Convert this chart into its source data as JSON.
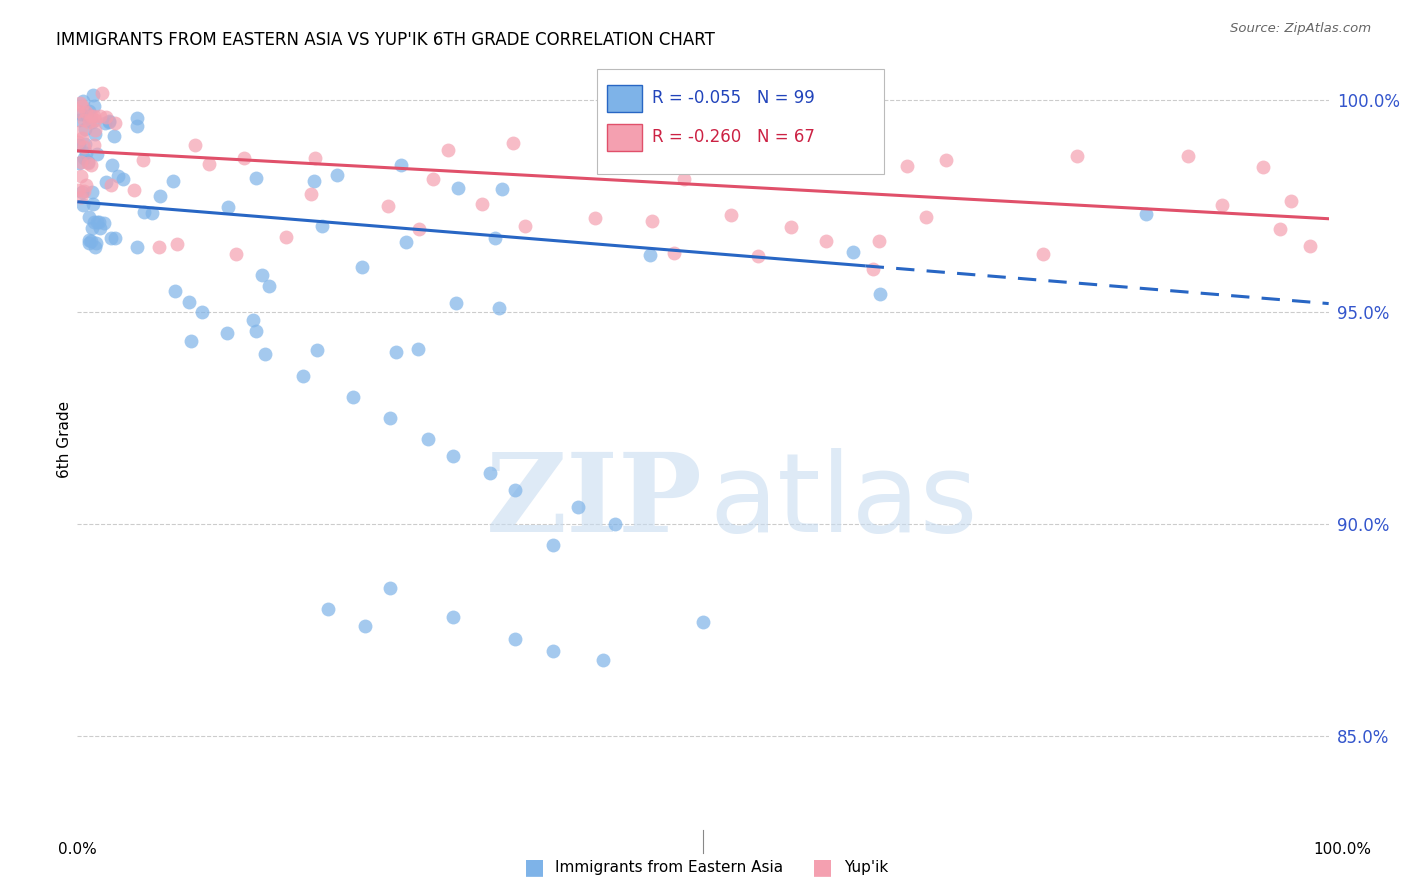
{
  "title": "IMMIGRANTS FROM EASTERN ASIA VS YUP'IK 6TH GRADE CORRELATION CHART",
  "source": "Source: ZipAtlas.com",
  "ylabel": "6th Grade",
  "y_ticks": [
    0.85,
    0.9,
    0.95,
    1.0
  ],
  "y_tick_labels": [
    "85.0%",
    "90.0%",
    "95.0%",
    "100.0%"
  ],
  "x_range": [
    0.0,
    1.0
  ],
  "y_range": [
    0.828,
    1.012
  ],
  "blue_R": -0.055,
  "blue_N": 99,
  "pink_R": -0.26,
  "pink_N": 67,
  "blue_color": "#7EB3E8",
  "pink_color": "#F4A0B0",
  "blue_line_color": "#2866C4",
  "pink_line_color": "#E0506A",
  "legend_label_blue": "Immigrants from Eastern Asia",
  "legend_label_pink": "Yup'ik",
  "blue_line_x0": 0.0,
  "blue_line_y0": 0.976,
  "blue_line_x1": 1.0,
  "blue_line_y1": 0.952,
  "blue_line_solid_end": 0.63,
  "pink_line_x0": 0.0,
  "pink_line_y0": 0.988,
  "pink_line_x1": 1.0,
  "pink_line_y1": 0.972
}
